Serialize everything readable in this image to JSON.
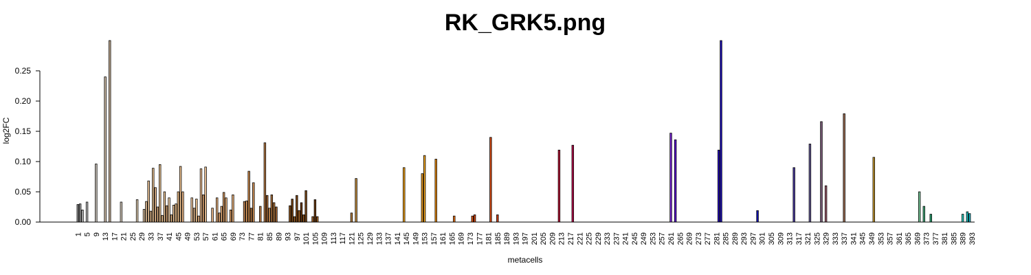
{
  "chart_data": {
    "type": "bar",
    "title": "RK_GRK5.png",
    "xlabel": "metacells",
    "ylabel": "log2FC",
    "ylim": [
      0,
      0.3
    ],
    "y_ticks": [
      "0.00",
      "0.05",
      "0.10",
      "0.15",
      "0.20",
      "0.25"
    ],
    "y_tick_values": [
      0,
      0.05,
      0.1,
      0.15,
      0.2,
      0.25
    ],
    "x_ticks": [
      1,
      5,
      9,
      13,
      17,
      21,
      25,
      29,
      33,
      37,
      41,
      45,
      49,
      53,
      57,
      61,
      65,
      69,
      73,
      77,
      81,
      85,
      89,
      93,
      97,
      101,
      105,
      109,
      113,
      117,
      121,
      125,
      129,
      133,
      137,
      141,
      145,
      149,
      153,
      157,
      161,
      165,
      169,
      173,
      177,
      181,
      185,
      189,
      193,
      197,
      201,
      205,
      209,
      213,
      217,
      221,
      225,
      229,
      233,
      237,
      241,
      245,
      249,
      253,
      257,
      261,
      265,
      269,
      273,
      277,
      281,
      285,
      289,
      293,
      297,
      301,
      305,
      309,
      313,
      317,
      321,
      325,
      329,
      333,
      337,
      341,
      345,
      349,
      353,
      357,
      361,
      365,
      369,
      373,
      377,
      381,
      385,
      389,
      393
    ],
    "x_range": [
      1,
      394
    ],
    "grid": false,
    "bars": [
      {
        "x": 1,
        "value": 0.029,
        "color": "#8c8c8c"
      },
      {
        "x": 2,
        "value": 0.03,
        "color": "#a3a3a3"
      },
      {
        "x": 3,
        "value": 0.02,
        "color": "#b0b0b0"
      },
      {
        "x": 5,
        "value": 0.033,
        "color": "#bdbdbd"
      },
      {
        "x": 9,
        "value": 0.096,
        "color": "#c9c2b8"
      },
      {
        "x": 13,
        "value": 0.24,
        "color": "#c8b6a0"
      },
      {
        "x": 15,
        "value": 0.3,
        "color": "#c4ae95"
      },
      {
        "x": 20,
        "value": 0.033,
        "color": "#d9cdbf"
      },
      {
        "x": 27,
        "value": 0.037,
        "color": "#e0cdb2"
      },
      {
        "x": 30,
        "value": 0.021,
        "color": "#e8c9a4"
      },
      {
        "x": 31,
        "value": 0.034,
        "color": "#e6c29a"
      },
      {
        "x": 32,
        "value": 0.068,
        "color": "#e3bd93"
      },
      {
        "x": 33,
        "value": 0.018,
        "color": "#deb68a"
      },
      {
        "x": 34,
        "value": 0.089,
        "color": "#e2bc8e"
      },
      {
        "x": 35,
        "value": 0.057,
        "color": "#dcb085"
      },
      {
        "x": 36,
        "value": 0.025,
        "color": "#d6aa7e"
      },
      {
        "x": 37,
        "value": 0.095,
        "color": "#e7c190"
      },
      {
        "x": 38,
        "value": 0.011,
        "color": "#e0b685"
      },
      {
        "x": 39,
        "value": 0.05,
        "color": "#e8c192"
      },
      {
        "x": 40,
        "value": 0.027,
        "color": "#d9a676"
      },
      {
        "x": 41,
        "value": 0.04,
        "color": "#efcfa6"
      },
      {
        "x": 42,
        "value": 0.012,
        "color": "#e2b482"
      },
      {
        "x": 43,
        "value": 0.028,
        "color": "#f0c89a"
      },
      {
        "x": 44,
        "value": 0.03,
        "color": "#e8bd8a"
      },
      {
        "x": 45,
        "value": 0.05,
        "color": "#f2c28c"
      },
      {
        "x": 46,
        "value": 0.092,
        "color": "#f4c896"
      },
      {
        "x": 47,
        "value": 0.05,
        "color": "#eeb886"
      },
      {
        "x": 51,
        "value": 0.04,
        "color": "#f0c79d"
      },
      {
        "x": 52,
        "value": 0.023,
        "color": "#ecbf92"
      },
      {
        "x": 53,
        "value": 0.038,
        "color": "#f2c896"
      },
      {
        "x": 54,
        "value": 0.01,
        "color": "#e7b383"
      },
      {
        "x": 55,
        "value": 0.088,
        "color": "#f3c293"
      },
      {
        "x": 56,
        "value": 0.045,
        "color": "#d8a06e"
      },
      {
        "x": 57,
        "value": 0.091,
        "color": "#f5c99b"
      },
      {
        "x": 60,
        "value": 0.023,
        "color": "#e6b283"
      },
      {
        "x": 62,
        "value": 0.04,
        "color": "#eab582"
      },
      {
        "x": 63,
        "value": 0.015,
        "color": "#dca06c"
      },
      {
        "x": 64,
        "value": 0.026,
        "color": "#e4ad7a"
      },
      {
        "x": 65,
        "value": 0.049,
        "color": "#d79b65"
      },
      {
        "x": 66,
        "value": 0.04,
        "color": "#e8b27c"
      },
      {
        "x": 68,
        "value": 0.02,
        "color": "#d99e68"
      },
      {
        "x": 69,
        "value": 0.045,
        "color": "#e6ad77"
      },
      {
        "x": 74,
        "value": 0.034,
        "color": "#c98a54"
      },
      {
        "x": 75,
        "value": 0.035,
        "color": "#d8995f"
      },
      {
        "x": 76,
        "value": 0.084,
        "color": "#c88648"
      },
      {
        "x": 77,
        "value": 0.023,
        "color": "#b87a45"
      },
      {
        "x": 78,
        "value": 0.065,
        "color": "#cf9056"
      },
      {
        "x": 81,
        "value": 0.026,
        "color": "#c08048"
      },
      {
        "x": 83,
        "value": 0.131,
        "color": "#b77b45"
      },
      {
        "x": 84,
        "value": 0.044,
        "color": "#a86a38"
      },
      {
        "x": 85,
        "value": 0.023,
        "color": "#c58950"
      },
      {
        "x": 86,
        "value": 0.045,
        "color": "#a9703c"
      },
      {
        "x": 87,
        "value": 0.032,
        "color": "#b67b40"
      },
      {
        "x": 88,
        "value": 0.025,
        "color": "#9c6130"
      },
      {
        "x": 94,
        "value": 0.027,
        "color": "#8c5420"
      },
      {
        "x": 95,
        "value": 0.038,
        "color": "#7a4616"
      },
      {
        "x": 96,
        "value": 0.009,
        "color": "#9c5f22"
      },
      {
        "x": 97,
        "value": 0.044,
        "color": "#7e4614"
      },
      {
        "x": 98,
        "value": 0.019,
        "color": "#a86626"
      },
      {
        "x": 99,
        "value": 0.032,
        "color": "#6b3a10"
      },
      {
        "x": 100,
        "value": 0.012,
        "color": "#8d521c"
      },
      {
        "x": 101,
        "value": 0.052,
        "color": "#7a4818"
      },
      {
        "x": 104,
        "value": 0.009,
        "color": "#9a5c24"
      },
      {
        "x": 105,
        "value": 0.037,
        "color": "#6f3e12"
      },
      {
        "x": 106,
        "value": 0.009,
        "color": "#a06226"
      },
      {
        "x": 121,
        "value": 0.015,
        "color": "#b88040"
      },
      {
        "x": 123,
        "value": 0.072,
        "color": "#c08a3c"
      },
      {
        "x": 144,
        "value": 0.09,
        "color": "#f0a018"
      },
      {
        "x": 152,
        "value": 0.08,
        "color": "#f0a028"
      },
      {
        "x": 153,
        "value": 0.11,
        "color": "#f5a820"
      },
      {
        "x": 158,
        "value": 0.104,
        "color": "#e88a10"
      },
      {
        "x": 166,
        "value": 0.01,
        "color": "#e86e10"
      },
      {
        "x": 174,
        "value": 0.01,
        "color": "#e85a18"
      },
      {
        "x": 175,
        "value": 0.012,
        "color": "#d84a14"
      },
      {
        "x": 182,
        "value": 0.14,
        "color": "#d44a14"
      },
      {
        "x": 185,
        "value": 0.012,
        "color": "#c83c14"
      },
      {
        "x": 212,
        "value": 0.119,
        "color": "#c0183c"
      },
      {
        "x": 218,
        "value": 0.127,
        "color": "#b8104c"
      },
      {
        "x": 261,
        "value": 0.147,
        "color": "#7a28d8"
      },
      {
        "x": 263,
        "value": 0.136,
        "color": "#5a10d0"
      },
      {
        "x": 282,
        "value": 0.119,
        "color": "#2a10c0"
      },
      {
        "x": 283,
        "value": 0.3,
        "color": "#1e10b8"
      },
      {
        "x": 299,
        "value": 0.019,
        "color": "#1010b0"
      },
      {
        "x": 315,
        "value": 0.09,
        "color": "#4a3aa0"
      },
      {
        "x": 322,
        "value": 0.129,
        "color": "#6a6098"
      },
      {
        "x": 327,
        "value": 0.166,
        "color": "#7a5a78"
      },
      {
        "x": 329,
        "value": 0.06,
        "color": "#a06070"
      },
      {
        "x": 337,
        "value": 0.179,
        "color": "#9a6a50"
      },
      {
        "x": 350,
        "value": 0.107,
        "color": "#c89a30"
      },
      {
        "x": 370,
        "value": 0.05,
        "color": "#7ac89a"
      },
      {
        "x": 372,
        "value": 0.026,
        "color": "#4ab080"
      },
      {
        "x": 375,
        "value": 0.013,
        "color": "#2aa070"
      },
      {
        "x": 389,
        "value": 0.013,
        "color": "#30d0c0"
      },
      {
        "x": 391,
        "value": 0.017,
        "color": "#20c0c0"
      },
      {
        "x": 392,
        "value": 0.014,
        "color": "#18b8c8"
      }
    ]
  }
}
